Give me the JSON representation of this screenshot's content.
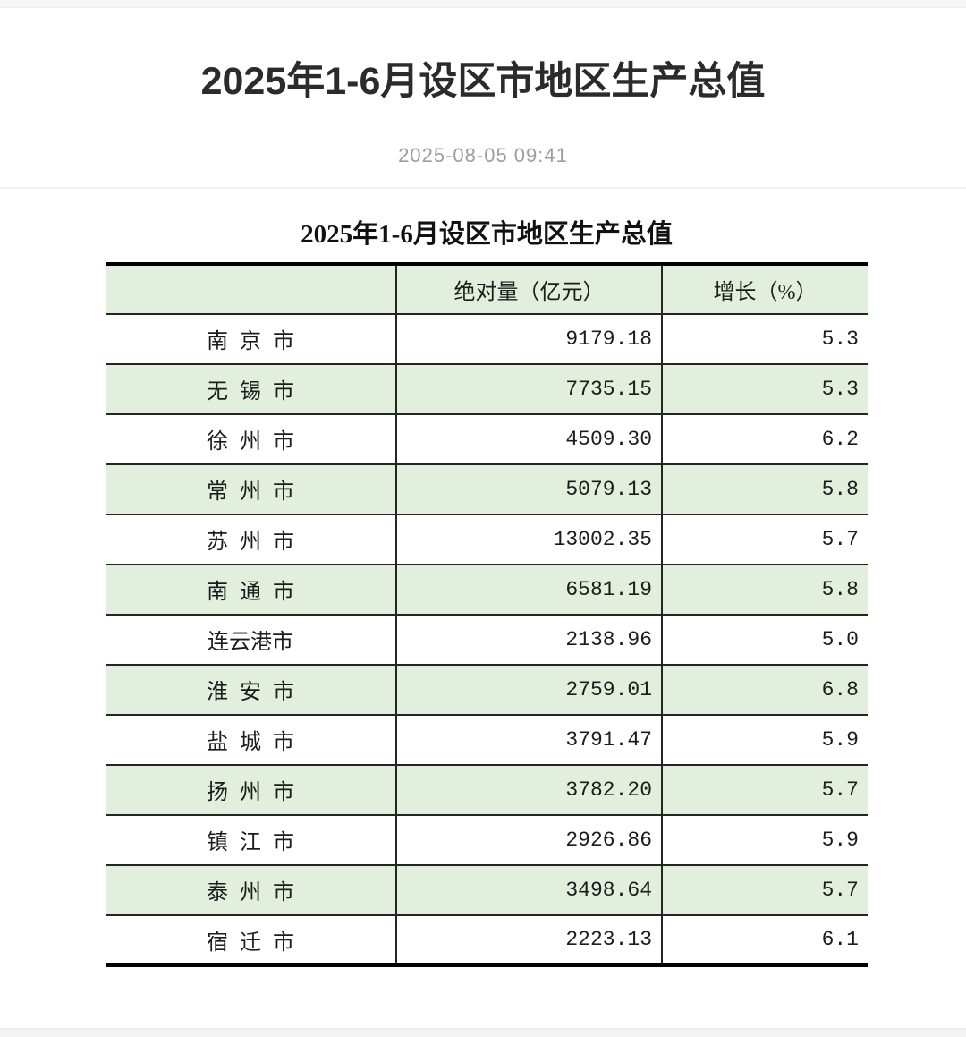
{
  "page": {
    "title": "2025年1-6月设区市地区生产总值",
    "date": "2025-08-05 09:41"
  },
  "table": {
    "title": "2025年1-6月设区市地区生产总值",
    "columns": [
      "",
      "绝对量（亿元）",
      "增长（%）"
    ],
    "unit_note": "亿元",
    "rows": [
      {
        "city": "南 京 市",
        "value": "9179.18",
        "growth": "5.3"
      },
      {
        "city": "无 锡 市",
        "value": "7735.15",
        "growth": "5.3"
      },
      {
        "city": "徐 州 市",
        "value": "4509.30",
        "growth": "6.2"
      },
      {
        "city": "常 州 市",
        "value": "5079.13",
        "growth": "5.8"
      },
      {
        "city": "苏 州 市",
        "value": "13002.35",
        "growth": "5.7"
      },
      {
        "city": "南 通 市",
        "value": "6581.19",
        "growth": "5.8"
      },
      {
        "city": "连云港市",
        "value": "2138.96",
        "growth": "5.0"
      },
      {
        "city": "淮 安 市",
        "value": "2759.01",
        "growth": "6.8"
      },
      {
        "city": "盐 城 市",
        "value": "3791.47",
        "growth": "5.9"
      },
      {
        "city": "扬 州 市",
        "value": "3782.20",
        "growth": "5.7"
      },
      {
        "city": "镇 江 市",
        "value": "2926.86",
        "growth": "5.9"
      },
      {
        "city": "泰 州 市",
        "value": "3498.64",
        "growth": "5.7"
      },
      {
        "city": "宿 迁 市",
        "value": "2223.13",
        "growth": "6.1"
      }
    ]
  },
  "colors": {
    "row_green": "#e2efdc",
    "border_dark": "#252525",
    "table_outer_border": "#000000",
    "date_gray": "#9e9e9e",
    "title_color": "#2b2b2b"
  }
}
